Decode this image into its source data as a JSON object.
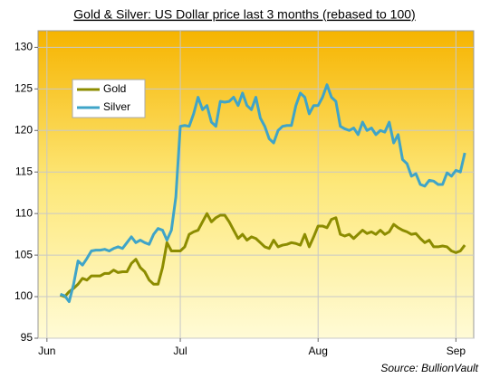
{
  "chart_data": {
    "type": "line",
    "title": "Gold  & Silver: US Dollar price last 3 months (rebased to 100)",
    "source": "Source: BullionVault",
    "x": [
      3,
      4,
      5,
      6,
      7,
      8,
      9,
      10,
      11,
      12,
      13,
      14,
      15,
      16,
      17,
      18,
      19,
      20,
      21,
      22,
      23,
      24,
      25,
      26,
      27,
      28,
      29,
      30,
      31,
      32,
      33,
      34,
      35,
      36,
      37,
      38,
      39,
      40,
      41,
      42,
      43,
      44,
      45,
      46,
      47,
      48,
      49,
      50,
      51,
      52,
      53,
      54,
      55,
      56,
      57,
      58,
      59,
      60,
      61,
      62,
      63,
      64,
      65,
      66,
      67,
      68,
      69,
      70,
      71,
      72,
      73,
      74,
      75,
      76,
      77,
      78,
      79,
      80,
      81,
      82,
      83,
      84,
      85,
      86,
      87,
      88,
      89,
      90,
      91,
      92,
      93,
      94
    ],
    "series": [
      {
        "name": "Gold",
        "color": "#8c8c00",
        "values": [
          100.2,
          100.0,
          100.6,
          101.0,
          101.5,
          102.2,
          102.0,
          102.5,
          102.5,
          102.5,
          102.8,
          102.8,
          103.2,
          102.9,
          103.0,
          103.0,
          104.0,
          104.5,
          103.5,
          103.0,
          102.0,
          101.5,
          101.5,
          103.5,
          106.5,
          105.5,
          105.5,
          105.5,
          106.0,
          107.5,
          107.8,
          108.0,
          109.0,
          110.0,
          109.0,
          109.5,
          109.8,
          109.8,
          109.0,
          108.0,
          107.0,
          107.5,
          106.8,
          107.2,
          107.0,
          106.5,
          106.0,
          105.8,
          106.8,
          106.0,
          106.2,
          106.3,
          106.5,
          106.4,
          106.2,
          107.5,
          106.0,
          107.2,
          108.5,
          108.5,
          108.3,
          109.3,
          109.5,
          107.5,
          107.3,
          107.5,
          107.0,
          107.5,
          108.0,
          107.6,
          107.8,
          107.5,
          108.0,
          107.5,
          107.8,
          108.7,
          108.3,
          108.0,
          107.8,
          107.5,
          107.6,
          107.0,
          106.5,
          106.8,
          106.0,
          106.0,
          106.1,
          106.0,
          105.5,
          105.3,
          105.5,
          106.2
        ]
      },
      {
        "name": "Silver",
        "color": "#3fa4c8",
        "values": [
          100.3,
          100.1,
          99.4,
          101.5,
          104.3,
          103.8,
          104.6,
          105.5,
          105.6,
          105.6,
          105.7,
          105.5,
          105.8,
          106.0,
          105.8,
          106.5,
          107.2,
          106.5,
          106.8,
          106.5,
          106.3,
          107.5,
          108.2,
          108.0,
          106.8,
          108.0,
          112.0,
          120.5,
          120.6,
          120.5,
          122.0,
          124.0,
          122.5,
          123.0,
          121.0,
          120.5,
          123.5,
          123.4,
          123.5,
          124.0,
          123.0,
          124.5,
          123.0,
          122.5,
          124.0,
          121.5,
          120.5,
          119.0,
          118.5,
          120.0,
          120.5,
          120.6,
          120.6,
          123.0,
          124.5,
          124.0,
          122.0,
          123.0,
          123.0,
          124.0,
          125.5,
          124.0,
          123.5,
          120.5,
          120.2,
          120.0,
          120.3,
          119.5,
          121.0,
          120.0,
          120.3,
          119.5,
          120.0,
          119.8,
          121.0,
          118.5,
          119.5,
          116.5,
          116.0,
          114.5,
          114.8,
          113.5,
          113.3,
          114.0,
          113.9,
          113.5,
          113.5,
          114.9,
          114.5,
          115.2,
          115.0,
          117.3
        ]
      }
    ],
    "xlim": [
      -2,
      96
    ],
    "xticks": [
      {
        "value": 0,
        "label": "Jun"
      },
      {
        "value": 30,
        "label": "Jul"
      },
      {
        "value": 61,
        "label": "Aug"
      },
      {
        "value": 92,
        "label": "Sep"
      }
    ],
    "ylim": [
      95,
      132
    ],
    "yticks": [
      95,
      100,
      105,
      110,
      115,
      120,
      125,
      130
    ],
    "grid": true,
    "legend": "upper left"
  }
}
